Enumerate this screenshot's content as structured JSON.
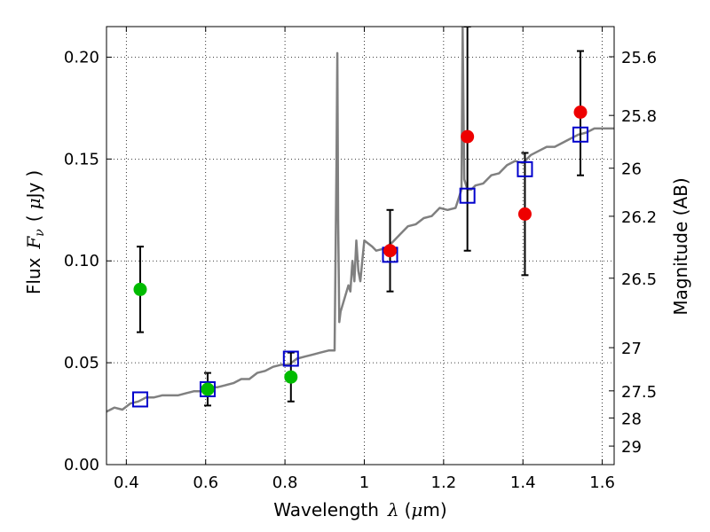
{
  "chart_data": {
    "type": "scatter",
    "xlabel": "Wavelength",
    "xlabel_symbol": "λ",
    "xlabel_unit_open": "(",
    "xlabel_unit_mu": "μ",
    "xlabel_unit_rest": "m)",
    "ylabel": "Flux",
    "ylabel_symbol": "F",
    "ylabel_sub": "ν",
    "ylabel_unit_open": "(",
    "ylabel_unit_mu": "μ",
    "ylabel_unit_rest": "Jy",
    "ylabel_unit_close": ")",
    "y2label": "Magnitude (AB)",
    "xlim": [
      0.35,
      1.63
    ],
    "ylim": [
      0.0,
      0.215
    ],
    "grid": true,
    "x_ticks": [
      {
        "value": 0.4,
        "label": "0.4"
      },
      {
        "value": 0.6,
        "label": "0.6"
      },
      {
        "value": 0.8,
        "label": "0.8"
      },
      {
        "value": 1.0,
        "label": "1"
      },
      {
        "value": 1.2,
        "label": "1.2"
      },
      {
        "value": 1.4,
        "label": "1.4"
      },
      {
        "value": 1.6,
        "label": "1.6"
      }
    ],
    "y_ticks": [
      {
        "value": 0.0,
        "label": "0.00"
      },
      {
        "value": 0.05,
        "label": "0.05"
      },
      {
        "value": 0.1,
        "label": "0.10"
      },
      {
        "value": 0.15,
        "label": "0.15"
      },
      {
        "value": 0.2,
        "label": "0.20"
      }
    ],
    "mag_ticks": [
      {
        "flux": 0.2002,
        "label": "25.6"
      },
      {
        "flux": 0.1714,
        "label": "25.8"
      },
      {
        "flux": 0.1455,
        "label": "26"
      },
      {
        "flux": 0.1219,
        "label": "26.2"
      },
      {
        "flux": 0.0915,
        "label": "26.5"
      },
      {
        "flux": 0.0574,
        "label": "27"
      },
      {
        "flux": 0.0362,
        "label": "27.5"
      },
      {
        "flux": 0.0229,
        "label": "28"
      },
      {
        "flux": 0.0091,
        "label": "29"
      }
    ],
    "series": [
      {
        "kind": "line",
        "color": "#808080",
        "x": [
          0.35,
          0.37,
          0.39,
          0.41,
          0.43,
          0.45,
          0.47,
          0.49,
          0.51,
          0.53,
          0.55,
          0.57,
          0.59,
          0.61,
          0.63,
          0.65,
          0.67,
          0.69,
          0.71,
          0.73,
          0.75,
          0.77,
          0.79,
          0.81,
          0.83,
          0.85,
          0.87,
          0.89,
          0.91,
          0.925,
          0.93,
          0.932,
          0.934,
          0.937,
          0.94,
          0.96,
          0.965,
          0.97,
          0.975,
          0.98,
          0.985,
          0.99,
          0.995,
          1.0,
          1.02,
          1.03,
          1.05,
          1.07,
          1.09,
          1.11,
          1.13,
          1.15,
          1.17,
          1.19,
          1.21,
          1.23,
          1.245,
          1.248,
          1.252,
          1.26,
          1.27,
          1.28,
          1.3,
          1.32,
          1.34,
          1.36,
          1.38,
          1.4,
          1.42,
          1.44,
          1.46,
          1.48,
          1.5,
          1.52,
          1.54,
          1.56,
          1.58,
          1.6,
          1.63
        ],
        "y": [
          0.026,
          0.028,
          0.027,
          0.03,
          0.031,
          0.033,
          0.033,
          0.034,
          0.034,
          0.034,
          0.035,
          0.036,
          0.036,
          0.038,
          0.038,
          0.039,
          0.04,
          0.042,
          0.042,
          0.045,
          0.046,
          0.048,
          0.049,
          0.049,
          0.052,
          0.053,
          0.054,
          0.055,
          0.056,
          0.056,
          0.15,
          0.202,
          0.12,
          0.07,
          0.075,
          0.088,
          0.085,
          0.1,
          0.09,
          0.11,
          0.095,
          0.09,
          0.1,
          0.11,
          0.107,
          0.105,
          0.106,
          0.109,
          0.113,
          0.117,
          0.118,
          0.121,
          0.122,
          0.126,
          0.125,
          0.126,
          0.135,
          0.215,
          0.14,
          0.135,
          0.135,
          0.137,
          0.138,
          0.142,
          0.143,
          0.147,
          0.149,
          0.148,
          0.152,
          0.154,
          0.156,
          0.156,
          0.158,
          0.16,
          0.162,
          0.163,
          0.165,
          0.165,
          0.165
        ]
      },
      {
        "kind": "model_points",
        "marker": "open-square",
        "color": "#0000cc",
        "x": [
          0.435,
          0.605,
          0.815,
          1.065,
          1.26,
          1.405,
          1.545
        ],
        "y": [
          0.032,
          0.037,
          0.052,
          0.103,
          0.132,
          0.145,
          0.162
        ]
      },
      {
        "kind": "observed_green",
        "marker": "filled-circle",
        "color": "#00bb00",
        "x": [
          0.435,
          0.605,
          0.815
        ],
        "y": [
          0.086,
          0.037,
          0.043
        ],
        "err_low": [
          0.065,
          0.029,
          0.031
        ],
        "err_high": [
          0.107,
          0.045,
          0.055
        ]
      },
      {
        "kind": "observed_red",
        "marker": "filled-circle",
        "color": "#ee0000",
        "x": [
          1.065,
          1.26,
          1.405,
          1.545
        ],
        "y": [
          0.105,
          0.161,
          0.123,
          0.173
        ],
        "err_low": [
          0.085,
          0.105,
          0.093,
          0.142
        ],
        "err_high": [
          0.125,
          0.215,
          0.153,
          0.203
        ]
      }
    ]
  }
}
